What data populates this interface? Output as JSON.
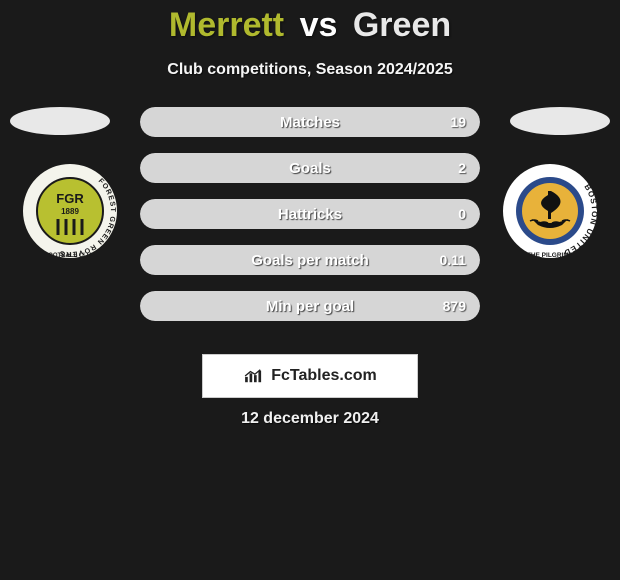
{
  "title": {
    "p1": "Merrett",
    "vs": "vs",
    "p2": "Green"
  },
  "subtitle": "Club competitions, Season 2024/2025",
  "colors": {
    "p1_accent": "#b0b92e",
    "p2_accent": "#d8d8d8",
    "bar_p1": "#b2b82f",
    "bar_p2": "#d6d6d6",
    "row_bg": "#2a2a2a",
    "badge_ring_p1": "#b8c030",
    "badge_ring_p2": "#2b4a8a"
  },
  "stats": [
    {
      "label": "Matches",
      "p1": "",
      "p2": "19",
      "p1_pct": 0,
      "p2_pct": 100
    },
    {
      "label": "Goals",
      "p1": "",
      "p2": "2",
      "p1_pct": 0,
      "p2_pct": 100
    },
    {
      "label": "Hattricks",
      "p1": "",
      "p2": "0",
      "p1_pct": 0,
      "p2_pct": 100
    },
    {
      "label": "Goals per match",
      "p1": "",
      "p2": "0.11",
      "p1_pct": 0,
      "p2_pct": 100
    },
    {
      "label": "Min per goal",
      "p1": "",
      "p2": "879",
      "p1_pct": 0,
      "p2_pct": 100
    }
  ],
  "badge_left": {
    "outer_text": "FOREST GREEN ROVERS",
    "inner": "FGR",
    "year": "1889",
    "sub": "FOOTBALL CLUB"
  },
  "badge_right": {
    "outer_text": "BOSTON UNITED",
    "sub": "THE PILGRIMS"
  },
  "site_brand": "FcTables.com",
  "date": "12 december 2024"
}
